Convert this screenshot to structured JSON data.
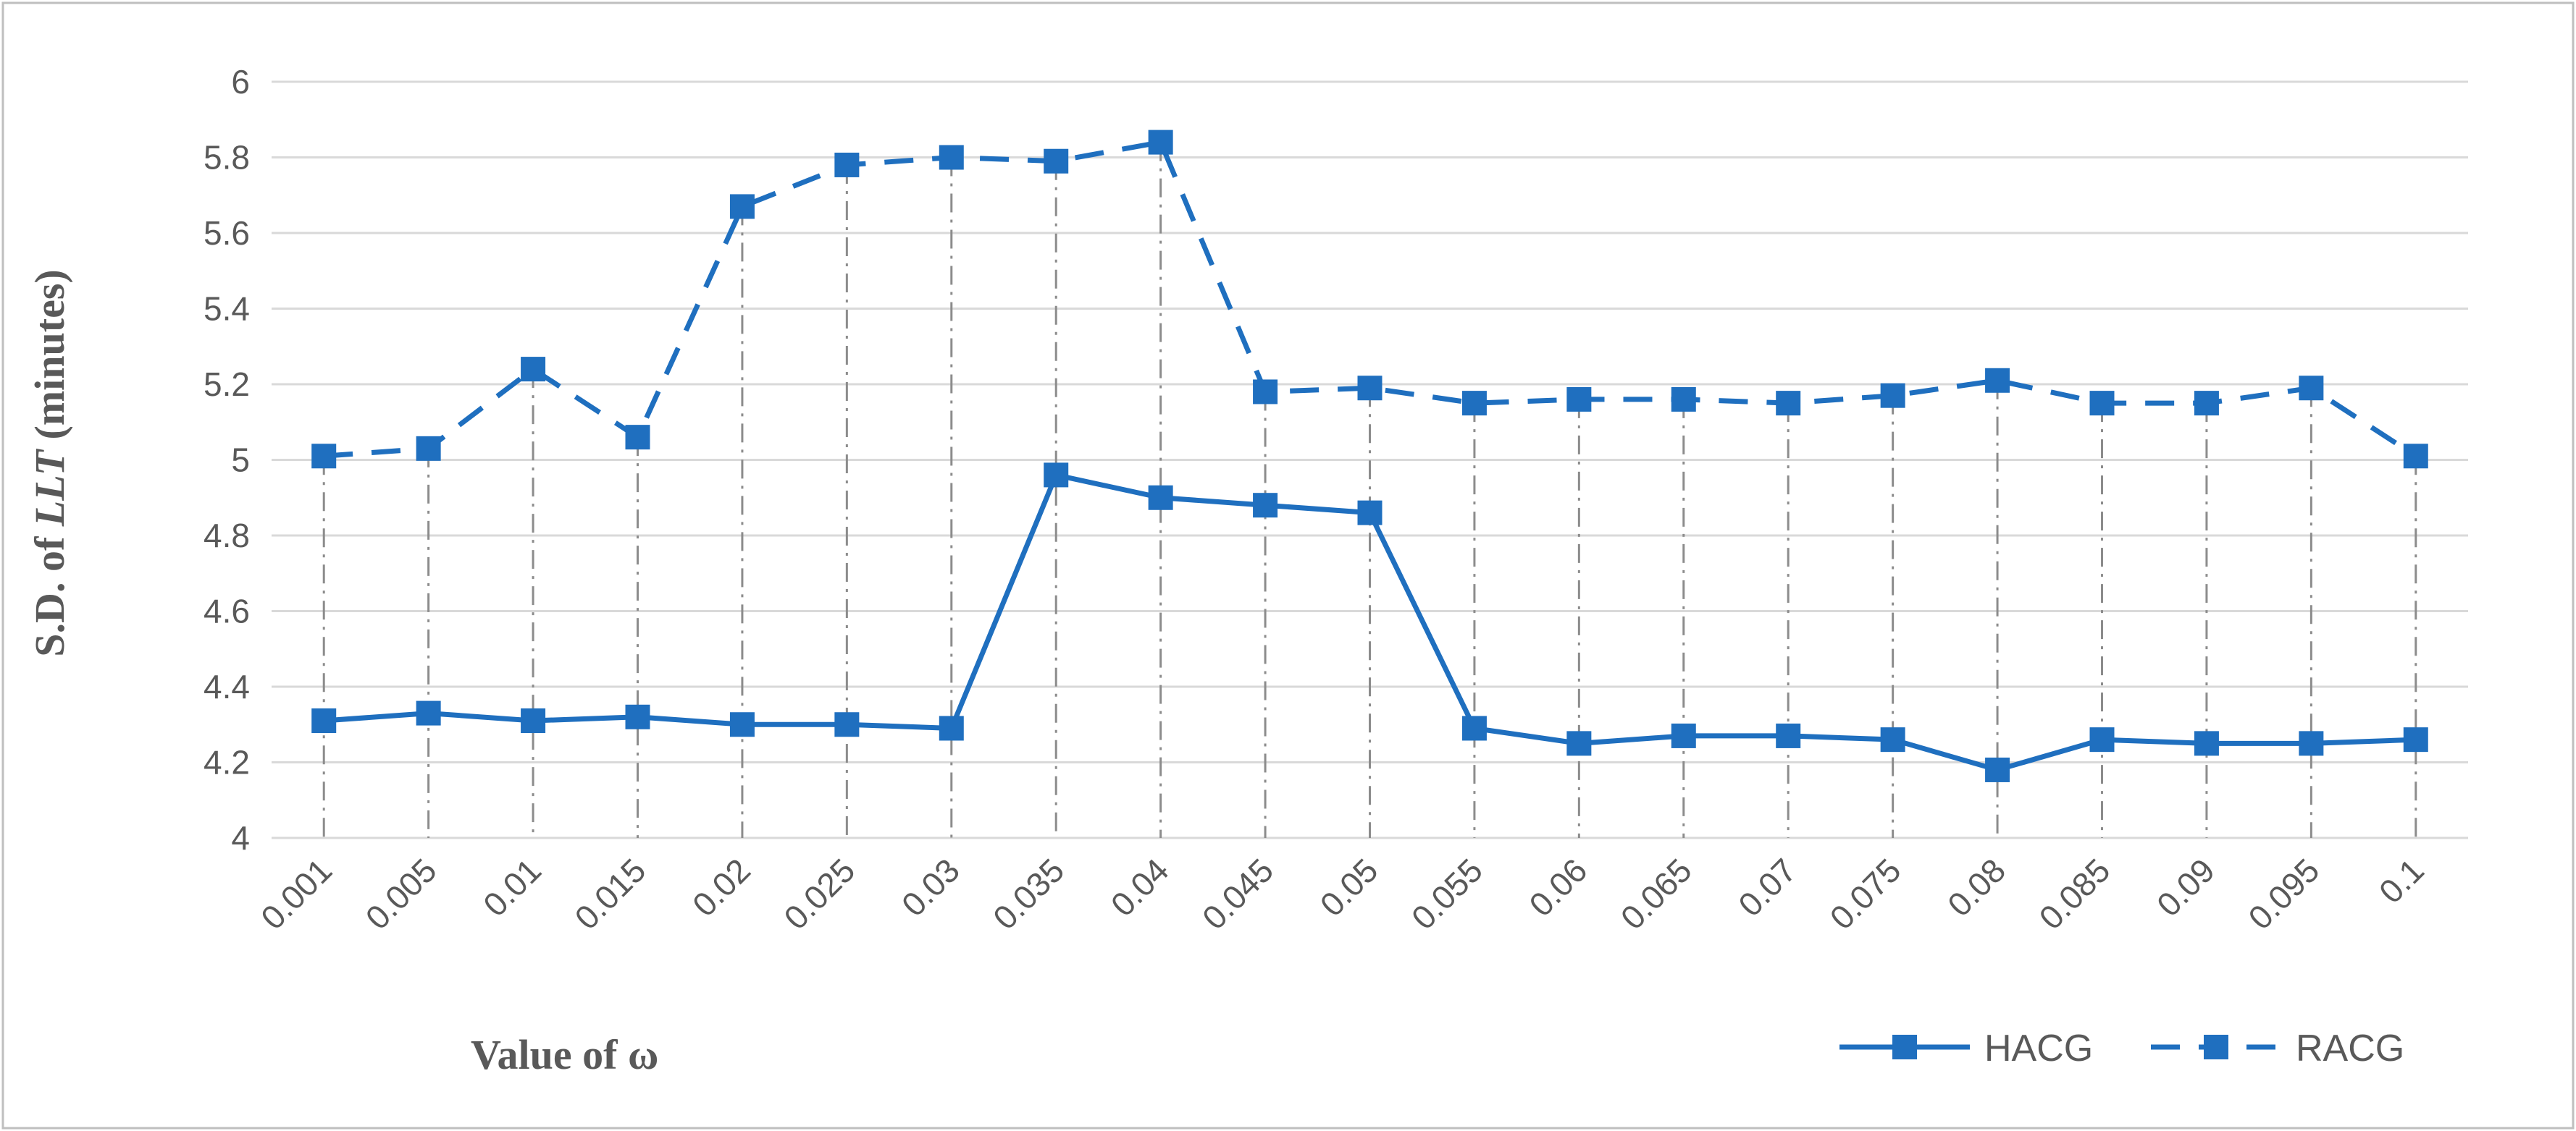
{
  "colors": {
    "series": "#1f6fbf",
    "grid": "#d9d9d9",
    "text": "#595959",
    "drop_lines": "#8c8c8c"
  },
  "chart_data": {
    "type": "line",
    "ylabel_prefix": "S.D. of ",
    "ylabel_italic": "LLT",
    "ylabel_suffix": " (minutes)",
    "xlabel": "Value of ω",
    "ylim": [
      4,
      6
    ],
    "yticks": [
      "4",
      "4.2",
      "4.4",
      "4.6",
      "4.8",
      "5",
      "5.2",
      "5.4",
      "5.6",
      "5.8",
      "6"
    ],
    "grid": true,
    "legend_position": "bottom-right",
    "categories": [
      "0.001",
      "0.005",
      "0.01",
      "0.015",
      "0.02",
      "0.025",
      "0.03",
      "0.035",
      "0.04",
      "0.045",
      "0.05",
      "0.055",
      "0.06",
      "0.065",
      "0.07",
      "0.075",
      "0.08",
      "0.085",
      "0.09",
      "0.095",
      "0.1"
    ],
    "series": [
      {
        "name": "HACG",
        "line_style": "solid",
        "values": [
          4.31,
          4.33,
          4.31,
          4.32,
          4.3,
          4.3,
          4.29,
          4.96,
          4.9,
          4.88,
          4.86,
          4.29,
          4.25,
          4.27,
          4.27,
          4.26,
          4.18,
          4.26,
          4.25,
          4.25,
          4.26
        ]
      },
      {
        "name": "RACG",
        "line_style": "dashed",
        "values": [
          5.01,
          5.03,
          5.24,
          5.06,
          5.67,
          5.78,
          5.8,
          5.79,
          5.84,
          5.18,
          5.19,
          5.15,
          5.16,
          5.16,
          5.15,
          5.17,
          5.21,
          5.15,
          5.15,
          5.19,
          5.01
        ]
      }
    ]
  }
}
